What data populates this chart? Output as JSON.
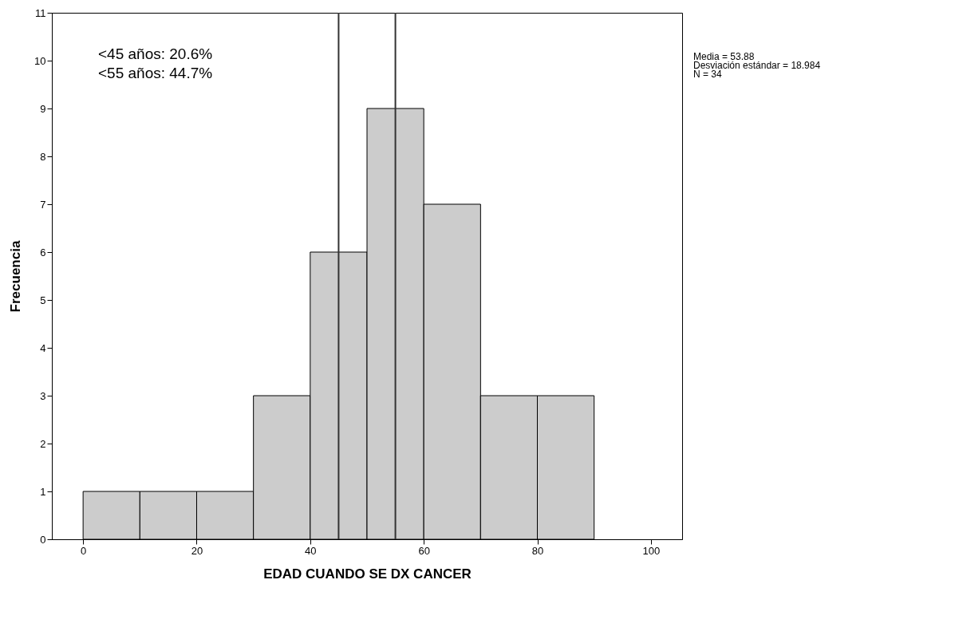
{
  "chart_data": {
    "type": "histogram",
    "xlabel": "EDAD CUANDO SE DX CANCER",
    "ylabel": "Frecuencia",
    "bins": [
      0,
      10,
      20,
      30,
      40,
      50,
      60,
      70,
      80,
      90
    ],
    "values": [
      1,
      1,
      1,
      3,
      6,
      9,
      7,
      3,
      3
    ],
    "color": "#cccccc",
    "xlim": [
      -5.5,
      105.5
    ],
    "xticks": [
      0,
      20,
      40,
      60,
      80,
      100
    ],
    "ylim": [
      0,
      11
    ],
    "yticks": [
      0,
      1,
      2,
      3,
      4,
      5,
      6,
      7,
      8,
      9,
      10,
      11
    ],
    "ref_lines": [
      {
        "axis": "x",
        "value": 45,
        "label": null,
        "color": "#333333"
      },
      {
        "axis": "x",
        "value": 55,
        "label": null,
        "color": "#333333"
      }
    ],
    "annotations": [
      "<45 años: 20.6%",
      "<55 años: 44.7%",
      "Media = 53.88",
      "Desviación estándar = 18.984",
      "N = 34"
    ],
    "grid": false
  }
}
